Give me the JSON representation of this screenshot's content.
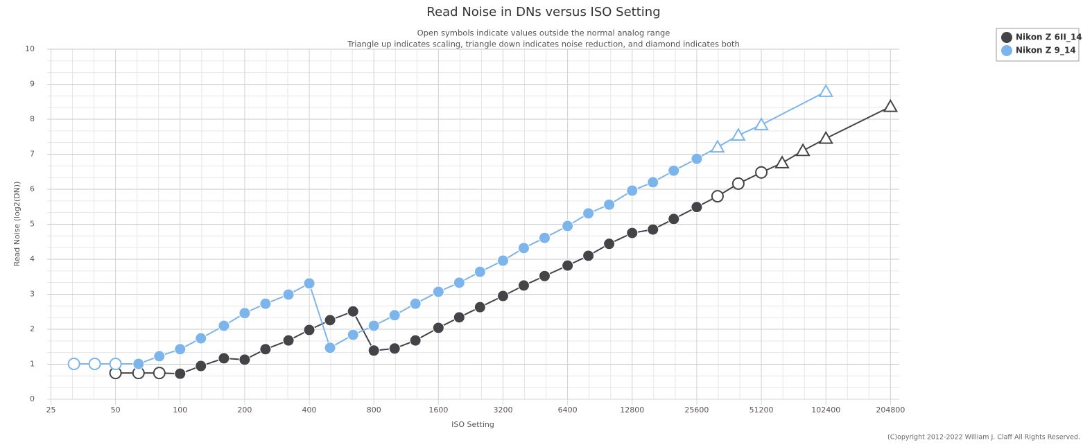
{
  "chart_data": {
    "type": "line",
    "title": "Read Noise in DNs versus ISO Setting",
    "subtitle": [
      "Open symbols indicate values outside the normal analog range",
      "Triangle up indicates scaling, triangle down indicates noise reduction, and diamond indicates both"
    ],
    "x_label": "ISO Setting",
    "y_label": "Read Noise (log2(DN))",
    "x_scale": "log2",
    "xlim": [
      24,
      225000
    ],
    "xticks": [
      25,
      50,
      100,
      200,
      400,
      800,
      1600,
      3200,
      6400,
      12800,
      25600,
      51200,
      102400,
      204800
    ],
    "ylim": [
      0,
      10
    ],
    "yticks": [
      0,
      1,
      2,
      3,
      4,
      5,
      6,
      7,
      8,
      9,
      10
    ],
    "grid": true,
    "minor_grid": true,
    "legend": "top-right",
    "series": [
      {
        "name": "Nikon Z 6II_14",
        "color": "#434348",
        "x": [
          50,
          64,
          80,
          100,
          125,
          160,
          200,
          250,
          320,
          400,
          500,
          640,
          800,
          1000,
          1250,
          1600,
          2000,
          2500,
          3200,
          4000,
          5000,
          6400,
          8000,
          10000,
          12800,
          16000,
          20000,
          25600,
          32000,
          40000,
          51200,
          64000,
          80000,
          102400,
          204800
        ],
        "values": [
          0.75,
          0.75,
          0.75,
          0.73,
          0.95,
          1.17,
          1.13,
          1.43,
          1.68,
          1.98,
          2.26,
          2.51,
          1.39,
          1.45,
          1.68,
          2.04,
          2.34,
          2.63,
          2.95,
          3.25,
          3.52,
          3.82,
          4.1,
          4.44,
          4.75,
          4.85,
          5.15,
          5.49,
          5.8,
          6.16,
          6.48,
          6.75,
          7.1,
          7.45,
          8.36
        ],
        "symbols": [
          "open-circle",
          "open-circle",
          "open-circle",
          "circle",
          "circle",
          "circle",
          "circle",
          "circle",
          "circle",
          "circle",
          "circle",
          "circle",
          "circle",
          "circle",
          "circle",
          "circle",
          "circle",
          "circle",
          "circle",
          "circle",
          "circle",
          "circle",
          "circle",
          "circle",
          "circle",
          "circle",
          "circle",
          "circle",
          "open-circle",
          "open-circle",
          "open-circle",
          "open-triangle",
          "open-triangle",
          "open-triangle",
          "open-triangle"
        ]
      },
      {
        "name": "Nikon Z 9_14",
        "color": "#7cb5ec",
        "x": [
          32,
          40,
          50,
          64,
          80,
          100,
          125,
          160,
          200,
          250,
          320,
          400,
          500,
          640,
          800,
          1000,
          1250,
          1600,
          2000,
          2500,
          3200,
          4000,
          5000,
          6400,
          8000,
          10000,
          12800,
          16000,
          20000,
          25600,
          32000,
          40000,
          51200,
          102400
        ],
        "values": [
          1.01,
          1.01,
          1.01,
          1.01,
          1.23,
          1.43,
          1.74,
          2.1,
          2.46,
          2.73,
          2.99,
          3.31,
          1.47,
          1.84,
          2.1,
          2.4,
          2.73,
          3.07,
          3.33,
          3.64,
          3.96,
          4.32,
          4.61,
          4.95,
          5.31,
          5.56,
          5.96,
          6.2,
          6.53,
          6.87,
          7.2,
          7.54,
          7.84,
          8.79
        ],
        "symbols": [
          "open-circle",
          "open-circle",
          "open-circle",
          "circle",
          "circle",
          "circle",
          "circle",
          "circle",
          "circle",
          "circle",
          "circle",
          "circle",
          "circle",
          "circle",
          "circle",
          "circle",
          "circle",
          "circle",
          "circle",
          "circle",
          "circle",
          "circle",
          "circle",
          "circle",
          "circle",
          "circle",
          "circle",
          "circle",
          "circle",
          "circle",
          "open-triangle",
          "open-triangle",
          "open-triangle",
          "open-triangle"
        ]
      }
    ],
    "footer": "(C)opyright 2012-2022 William J. Claff All Rights Reserved."
  }
}
